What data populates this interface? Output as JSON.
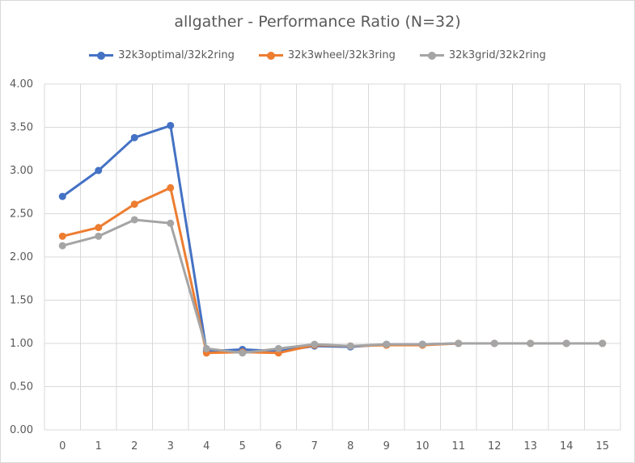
{
  "chart_data": {
    "type": "line",
    "title": "allgather - Performance Ratio (N=32)",
    "xlabel": "",
    "ylabel": "",
    "x": [
      0,
      1,
      2,
      3,
      4,
      5,
      6,
      7,
      8,
      9,
      10,
      11,
      12,
      13,
      14,
      15
    ],
    "ylim": [
      0,
      4
    ],
    "yticks": [
      "0.00",
      "0.50",
      "1.00",
      "1.50",
      "2.00",
      "2.50",
      "3.00",
      "3.50",
      "4.00"
    ],
    "ytick_values": [
      0,
      0.5,
      1,
      1.5,
      2,
      2.5,
      3,
      3.5,
      4
    ],
    "grid": true,
    "legend_position": "top",
    "series": [
      {
        "name": "32k3optimal/32k2ring",
        "color": "#4472c4",
        "values": [
          2.7,
          3.0,
          3.38,
          3.52,
          0.91,
          0.93,
          0.91,
          0.97,
          0.96,
          0.99,
          0.99,
          1.0,
          1.0,
          1.0,
          1.0,
          1.0
        ]
      },
      {
        "name": "32k3wheel/32k3ring",
        "color": "#ed7d31",
        "values": [
          2.24,
          2.34,
          2.61,
          2.8,
          0.89,
          0.9,
          0.89,
          0.98,
          0.97,
          0.98,
          0.98,
          1.0,
          1.0,
          1.0,
          1.0,
          1.0
        ]
      },
      {
        "name": "32k3grid/32k2ring",
        "color": "#a5a5a5",
        "values": [
          2.13,
          2.24,
          2.43,
          2.39,
          0.94,
          0.89,
          0.94,
          0.99,
          0.97,
          0.99,
          0.99,
          1.0,
          1.0,
          1.0,
          1.0,
          1.0
        ]
      }
    ]
  }
}
